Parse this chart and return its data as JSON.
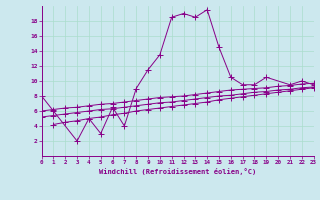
{
  "xlabel": "Windchill (Refroidissement éolien,°C)",
  "bg_color": "#cce8ee",
  "line_color": "#880088",
  "grid_color": "#aaddcc",
  "xlim": [
    0,
    23
  ],
  "ylim": [
    0,
    20
  ],
  "xticks": [
    0,
    1,
    2,
    3,
    4,
    5,
    6,
    7,
    8,
    9,
    10,
    11,
    12,
    13,
    14,
    15,
    16,
    17,
    18,
    19,
    20,
    21,
    22,
    23
  ],
  "yticks": [
    2,
    4,
    6,
    8,
    10,
    12,
    14,
    16,
    18
  ],
  "line1_x": [
    0,
    1,
    3,
    4,
    5,
    6,
    7,
    8,
    9,
    10,
    11,
    12,
    13,
    14,
    15,
    16,
    17,
    18,
    19,
    21,
    22,
    23
  ],
  "line1_y": [
    8.0,
    6.0,
    2.0,
    5.0,
    3.0,
    6.5,
    4.0,
    9.0,
    11.5,
    13.5,
    18.5,
    19.0,
    18.5,
    19.5,
    14.5,
    10.5,
    9.5,
    9.5,
    10.5,
    9.5,
    10.0,
    9.5
  ],
  "line2_x": [
    0,
    1,
    2,
    3,
    4,
    5,
    6,
    7,
    8,
    9,
    10,
    11,
    12,
    13,
    14,
    15,
    16,
    17,
    18,
    19,
    20,
    21,
    22,
    23
  ],
  "line2_y": [
    6.0,
    6.2,
    6.4,
    6.5,
    6.7,
    6.9,
    7.0,
    7.2,
    7.4,
    7.6,
    7.8,
    7.9,
    8.0,
    8.2,
    8.4,
    8.6,
    8.8,
    8.9,
    9.0,
    9.1,
    9.3,
    9.4,
    9.6,
    9.7
  ],
  "line3_x": [
    0,
    1,
    2,
    3,
    4,
    5,
    6,
    7,
    8,
    9,
    10,
    11,
    12,
    13,
    14,
    15,
    16,
    17,
    18,
    19,
    20,
    21,
    22,
    23
  ],
  "line3_y": [
    5.2,
    5.4,
    5.6,
    5.8,
    6.0,
    6.2,
    6.3,
    6.5,
    6.7,
    6.9,
    7.1,
    7.2,
    7.4,
    7.6,
    7.8,
    8.0,
    8.1,
    8.3,
    8.5,
    8.6,
    8.8,
    8.9,
    9.1,
    9.2
  ],
  "line4_x": [
    1,
    2,
    3,
    4,
    5,
    6,
    7,
    8,
    9,
    10,
    11,
    12,
    13,
    14,
    15,
    16,
    17,
    18,
    19,
    20,
    21,
    22,
    23
  ],
  "line4_y": [
    4.2,
    4.5,
    4.7,
    5.0,
    5.2,
    5.5,
    5.7,
    6.0,
    6.2,
    6.4,
    6.6,
    6.8,
    7.0,
    7.2,
    7.5,
    7.7,
    7.9,
    8.1,
    8.3,
    8.5,
    8.7,
    8.9,
    9.1
  ]
}
